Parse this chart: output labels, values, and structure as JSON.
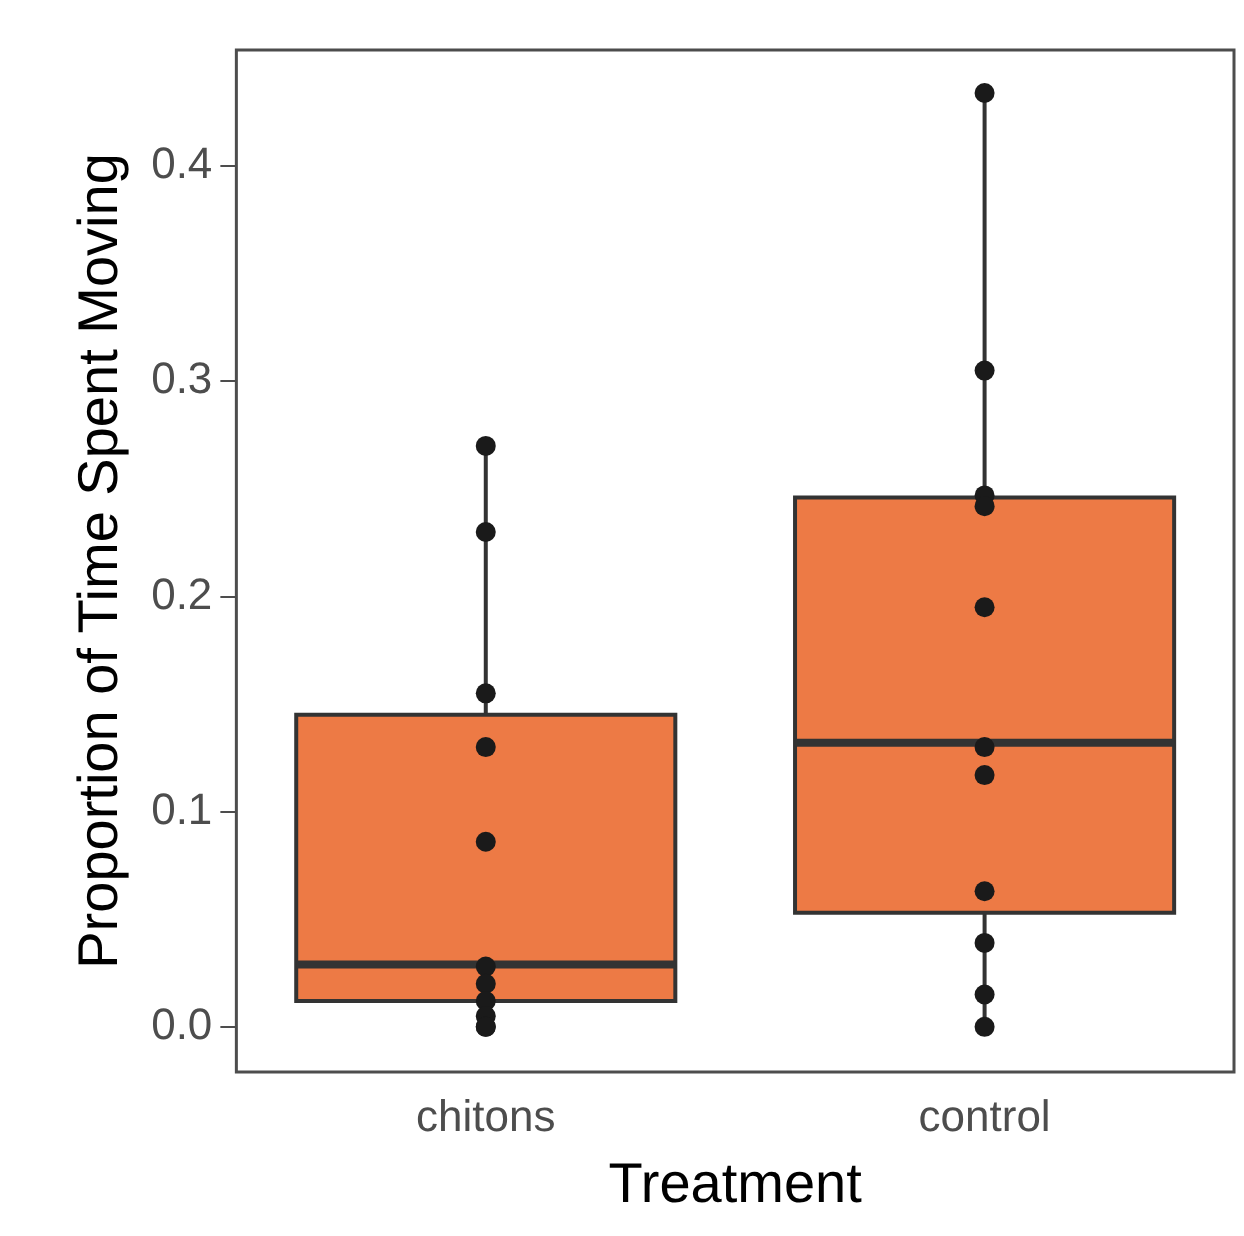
{
  "chart_data": {
    "type": "box",
    "xlabel": "Treatment",
    "ylabel": "Proportion of Time Spent Moving",
    "categories": [
      "chitons",
      "control"
    ],
    "ylim": [
      -0.021,
      0.454
    ],
    "yticks": [
      {
        "value": 0,
        "label": "0.0"
      },
      0.1,
      0.2,
      0.3,
      0.4
    ],
    "grid": false,
    "legend": false,
    "series": [
      {
        "color": "#ed7a45",
        "boxes": [
          {
            "low": 0,
            "q1": 0.012,
            "median": 0.029,
            "q3": 0.145,
            "high": 0.271
          },
          {
            "low": 0,
            "q1": 0.053,
            "median": 0.132,
            "q3": 0.246,
            "high": 0.433
          }
        ]
      },
      {
        "type": "scatter",
        "color": "#1a1a1a",
        "marker": "circle",
        "x": [
          "chitons",
          "chitons",
          "chitons",
          "chitons",
          "chitons",
          "chitons",
          "chitons",
          "chitons",
          "chitons",
          "chitons",
          "chitons",
          "control",
          "control",
          "control",
          "control",
          "control",
          "control",
          "control",
          "control",
          "control",
          "control",
          "control"
        ],
        "values": [
          0.27,
          0.23,
          0.155,
          0.13,
          0.086,
          0.028,
          0.02,
          0.012,
          0.005,
          0,
          0,
          0.434,
          0.305,
          0.247,
          0.242,
          0.195,
          0.13,
          0.117,
          0.063,
          0.039,
          0.015,
          0
        ]
      }
    ]
  }
}
